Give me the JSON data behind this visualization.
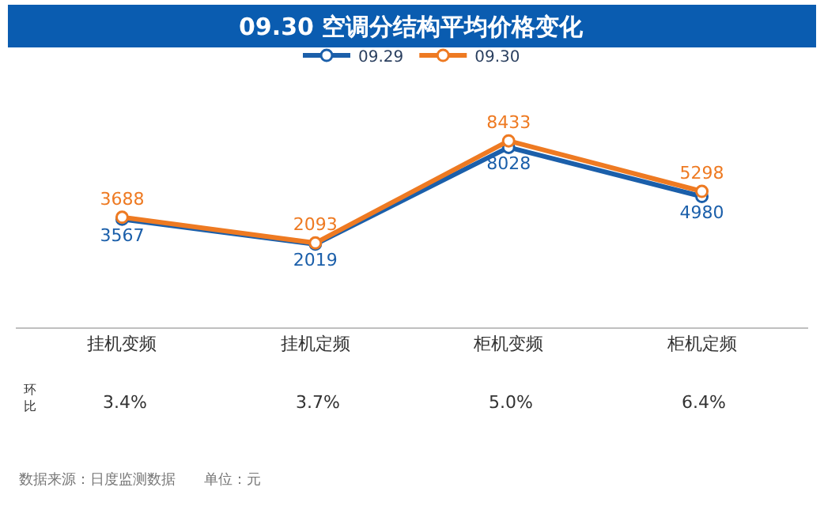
{
  "chart_data": {
    "type": "line",
    "title": "09.30 空调分结构平均价格变化",
    "categories": [
      "挂机变频",
      "挂机定频",
      "柜机变频",
      "柜机定频"
    ],
    "series": [
      {
        "name": "09.29",
        "color": "#1b5faa",
        "values": [
          3567,
          2019,
          8028,
          4980
        ]
      },
      {
        "name": "09.30",
        "color": "#ee7a22",
        "values": [
          3688,
          2093,
          8433,
          5298
        ]
      }
    ],
    "tick_labels": "x",
    "data_labels": true,
    "marker": "circle",
    "line_style": "solid",
    "grid": false,
    "legend": "top",
    "annotations": [
      "环比",
      "3.4%",
      "3.7%",
      "5.0%",
      "6.4%",
      "数据来源：日度监测数据　　单位：元"
    ]
  }
}
